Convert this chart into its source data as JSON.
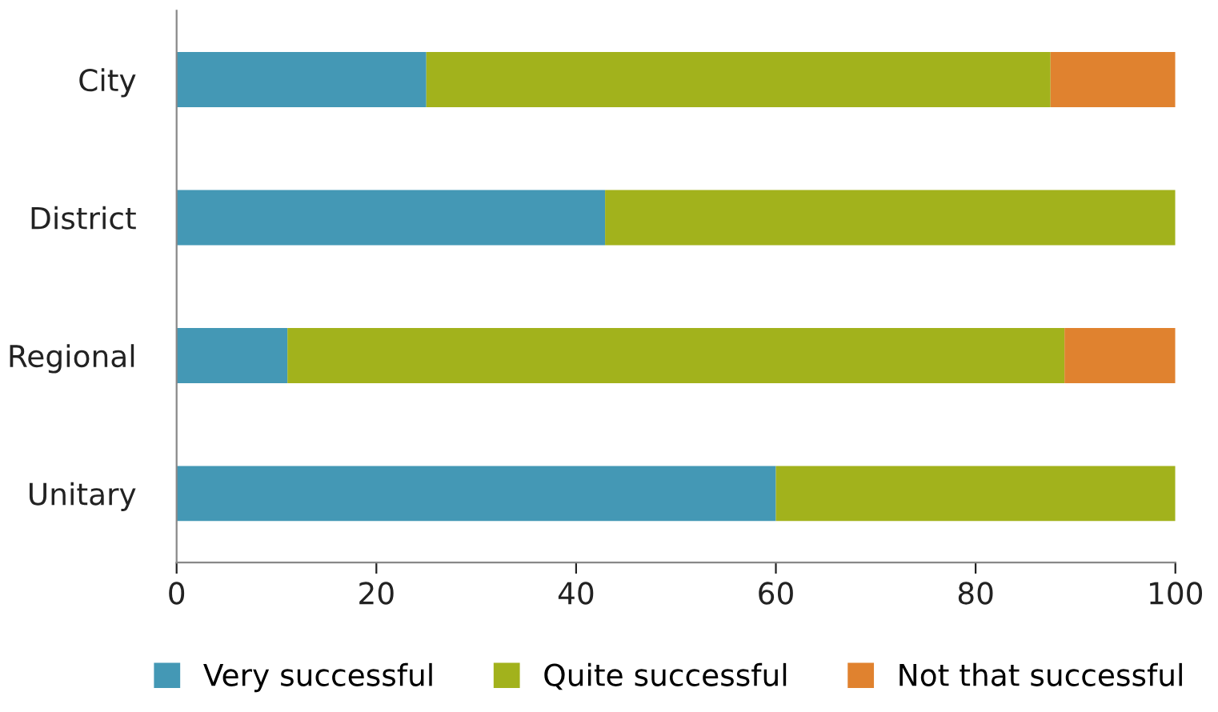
{
  "chart_data": {
    "type": "bar",
    "orientation": "horizontal",
    "stacked": true,
    "categories": [
      "City",
      "District",
      "Regional",
      "Unitary"
    ],
    "series": [
      {
        "name": "Very successful",
        "color": "#4498b5",
        "values": [
          25,
          42.9,
          11.1,
          60
        ]
      },
      {
        "name": "Quite successful",
        "color": "#a2b21c",
        "values": [
          62.5,
          57.1,
          77.8,
          40
        ]
      },
      {
        "name": "Not that successful",
        "color": "#e0822f",
        "values": [
          12.5,
          null,
          11.1,
          null
        ]
      }
    ],
    "xlim": [
      0,
      100
    ],
    "xticks": [
      0,
      20,
      40,
      60,
      80,
      100
    ],
    "grid": false,
    "legend": "bottom"
  }
}
